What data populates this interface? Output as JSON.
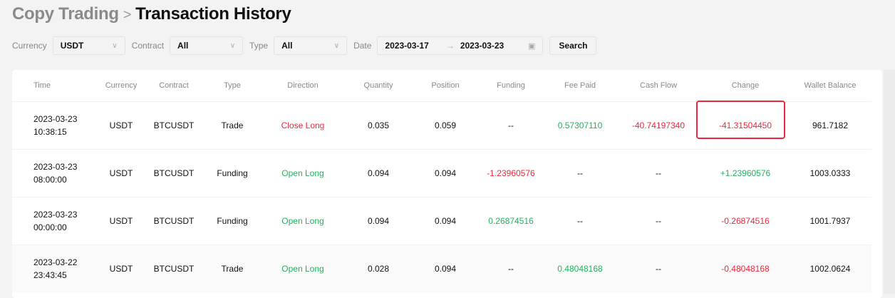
{
  "breadcrumb": {
    "parent": "Copy Trading",
    "separator": ">",
    "current": "Transaction History"
  },
  "filters": {
    "currency": {
      "label": "Currency",
      "value": "USDT"
    },
    "contract": {
      "label": "Contract",
      "value": "All"
    },
    "type": {
      "label": "Type",
      "value": "All"
    },
    "date": {
      "label": "Date",
      "start": "2023-03-17",
      "arrow": "→",
      "end": "2023-03-23"
    },
    "search_label": "Search"
  },
  "colors": {
    "negative": "#f0273a",
    "positive": "#20b45c",
    "highlight": "#f0273a"
  },
  "table": {
    "columns": [
      "Time",
      "Currency",
      "Contract",
      "Type",
      "Direction",
      "Quantity",
      "Position",
      "Funding",
      "Fee Paid",
      "Cash Flow",
      "Change",
      "Wallet Balance"
    ],
    "rows": [
      {
        "date": "2023-03-23",
        "time": "10:38:15",
        "currency": "USDT",
        "contract": "BTCUSDT",
        "type": "Trade",
        "direction": "Close Long",
        "direction_tone": "red",
        "quantity": "0.035",
        "position": "0.059",
        "funding": "--",
        "funding_tone": "",
        "fee": "0.57307110",
        "fee_tone": "green",
        "cash_flow": "-40.74197340",
        "cash_tone": "red",
        "change": "-41.31504450",
        "change_tone": "red",
        "balance": "961.7182"
      },
      {
        "date": "2023-03-23",
        "time": "08:00:00",
        "currency": "USDT",
        "contract": "BTCUSDT",
        "type": "Funding",
        "direction": "Open Long",
        "direction_tone": "green",
        "quantity": "0.094",
        "position": "0.094",
        "funding": "-1.23960576",
        "funding_tone": "red",
        "fee": "--",
        "fee_tone": "",
        "cash_flow": "--",
        "cash_tone": "",
        "change": "+1.23960576",
        "change_tone": "green",
        "balance": "1003.0333"
      },
      {
        "date": "2023-03-23",
        "time": "00:00:00",
        "currency": "USDT",
        "contract": "BTCUSDT",
        "type": "Funding",
        "direction": "Open Long",
        "direction_tone": "green",
        "quantity": "0.094",
        "position": "0.094",
        "funding": "0.26874516",
        "funding_tone": "green",
        "fee": "--",
        "fee_tone": "",
        "cash_flow": "--",
        "cash_tone": "",
        "change": "-0.26874516",
        "change_tone": "red",
        "balance": "1001.7937"
      },
      {
        "date": "2023-03-22",
        "time": "23:43:45",
        "currency": "USDT",
        "contract": "BTCUSDT",
        "type": "Trade",
        "direction": "Open Long",
        "direction_tone": "green",
        "quantity": "0.028",
        "position": "0.094",
        "funding": "--",
        "funding_tone": "",
        "fee": "0.48048168",
        "fee_tone": "green",
        "cash_flow": "--",
        "cash_tone": "",
        "change": "-0.48048168",
        "change_tone": "red",
        "balance": "1002.0624"
      }
    ]
  }
}
